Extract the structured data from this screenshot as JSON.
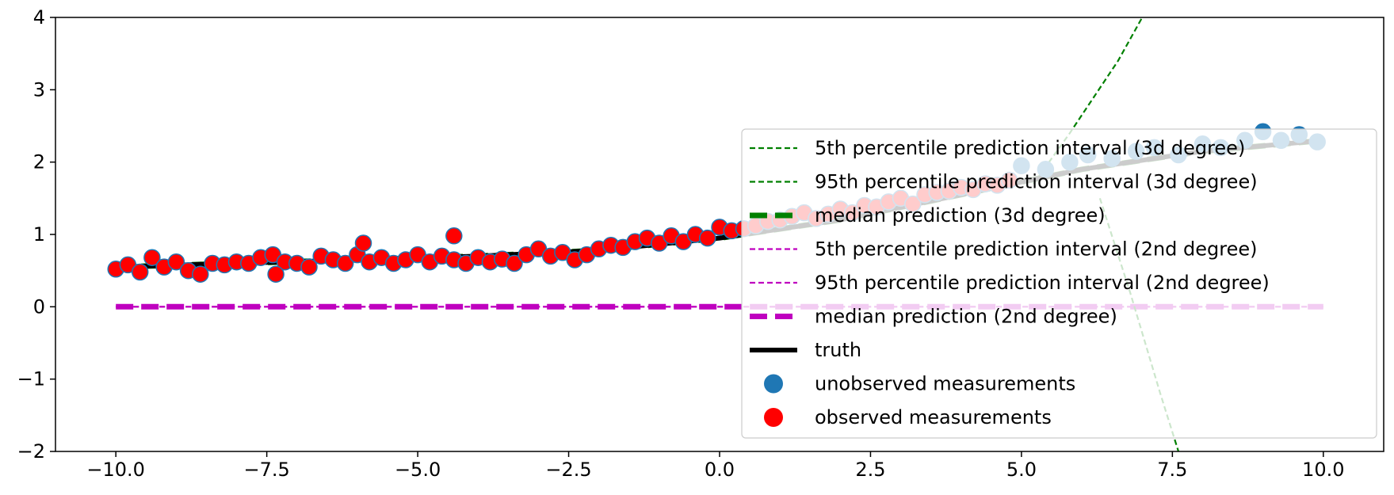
{
  "chart_data": {
    "type": "line",
    "title": "",
    "xlabel": "",
    "ylabel": "",
    "xlim": [
      -11.0,
      11.0
    ],
    "ylim": [
      -2,
      4
    ],
    "x_ticks": [
      -10.0,
      -7.5,
      -5.0,
      -2.5,
      0.0,
      2.5,
      5.0,
      7.5,
      10.0
    ],
    "x_tick_labels": [
      "−10.0",
      "−7.5",
      "−5.0",
      "−2.5",
      "0.0",
      "2.5",
      "5.0",
      "7.5",
      "10.0"
    ],
    "y_ticks": [
      -2,
      -1,
      0,
      1,
      2,
      3,
      4
    ],
    "y_tick_labels": [
      "−2",
      "−1",
      "0",
      "1",
      "2",
      "3",
      "4"
    ],
    "grid": false,
    "legend_position": "lower-right",
    "series": [
      {
        "name": "5th percentile prediction interval (3d degree)",
        "color": "#008000",
        "style": "dashed-thin",
        "x": [
          6.3,
          6.8,
          7.3,
          7.6
        ],
        "y": [
          1.5,
          0.2,
          -1.2,
          -2.0
        ]
      },
      {
        "name": "95th percentile prediction interval (3d degree)",
        "color": "#008000",
        "style": "dashed-thin",
        "x": [
          5.2,
          5.8,
          6.2,
          6.6,
          7.0
        ],
        "y": [
          1.7,
          2.4,
          2.9,
          3.4,
          4.0
        ]
      },
      {
        "name": "median prediction (3d degree)",
        "color": "#008000",
        "style": "dashed-thick",
        "x": [
          -10,
          -8,
          -6,
          -4,
          -2,
          0,
          2,
          4,
          6,
          8,
          10
        ],
        "y": [
          0.55,
          0.6,
          0.65,
          0.7,
          0.78,
          0.95,
          1.2,
          1.55,
          1.9,
          2.15,
          2.3
        ]
      },
      {
        "name": "5th percentile prediction interval (2nd degree)",
        "color": "#bf00bf",
        "style": "dashed-thin",
        "x": [
          -10,
          10
        ],
        "y": [
          0,
          0
        ]
      },
      {
        "name": "95th percentile prediction interval (2nd degree)",
        "color": "#bf00bf",
        "style": "dashed-thin",
        "x": [
          -10,
          10
        ],
        "y": [
          0,
          0
        ]
      },
      {
        "name": "median prediction (2nd degree)",
        "color": "#bf00bf",
        "style": "dashed-thick",
        "x": [
          -10,
          10
        ],
        "y": [
          0,
          0
        ]
      },
      {
        "name": "truth",
        "color": "#000000",
        "style": "solid-thick",
        "x": [
          -10,
          -8,
          -6,
          -4,
          -2,
          0,
          2,
          4,
          6,
          8,
          10
        ],
        "y": [
          0.55,
          0.6,
          0.65,
          0.7,
          0.78,
          0.95,
          1.2,
          1.55,
          1.9,
          2.15,
          2.3
        ]
      },
      {
        "name": "unobserved measurements",
        "color": "#1f77b4",
        "style": "points",
        "x": [
          5.0,
          5.4,
          5.8,
          6.1,
          6.5,
          6.9,
          7.2,
          7.6,
          8.0,
          8.3,
          8.7,
          9.0,
          9.3,
          9.6,
          9.9
        ],
        "y": [
          1.95,
          1.9,
          2.0,
          2.1,
          2.05,
          2.15,
          2.2,
          2.1,
          2.25,
          2.2,
          2.3,
          2.42,
          2.3,
          2.38,
          2.28
        ]
      },
      {
        "name": "observed measurements",
        "color": "#ff0000",
        "style": "points",
        "x": [
          -10.0,
          -9.8,
          -9.6,
          -9.4,
          -9.2,
          -9.0,
          -8.8,
          -8.6,
          -8.4,
          -8.2,
          -8.0,
          -7.8,
          -7.6,
          -7.4,
          -7.2,
          -7.0,
          -6.8,
          -6.6,
          -6.4,
          -6.2,
          -6.0,
          -5.8,
          -5.6,
          -5.4,
          -5.2,
          -5.0,
          -4.8,
          -4.6,
          -4.4,
          -4.2,
          -4.0,
          -3.8,
          -3.6,
          -3.4,
          -3.2,
          -3.0,
          -2.8,
          -2.6,
          -2.4,
          -2.2,
          -2.0,
          -1.8,
          -1.6,
          -1.4,
          -1.2,
          -1.0,
          -0.8,
          -0.6,
          -0.4,
          -0.2,
          0.0,
          0.2,
          0.4,
          0.6,
          0.8,
          1.0,
          1.2,
          1.4,
          1.6,
          1.8,
          2.0,
          2.2,
          2.4,
          2.6,
          2.8,
          3.0,
          3.2,
          3.4,
          3.6,
          3.8,
          4.0,
          4.2,
          4.4,
          4.6,
          4.8,
          -7.35,
          -4.4,
          -5.9
        ],
        "y": [
          0.52,
          0.58,
          0.48,
          0.68,
          0.55,
          0.62,
          0.5,
          0.45,
          0.6,
          0.58,
          0.62,
          0.6,
          0.68,
          0.72,
          0.62,
          0.6,
          0.55,
          0.7,
          0.65,
          0.6,
          0.72,
          0.62,
          0.68,
          0.6,
          0.65,
          0.72,
          0.62,
          0.7,
          0.65,
          0.6,
          0.68,
          0.62,
          0.66,
          0.6,
          0.72,
          0.8,
          0.7,
          0.75,
          0.65,
          0.72,
          0.8,
          0.85,
          0.82,
          0.9,
          0.95,
          0.88,
          0.98,
          0.9,
          1.0,
          0.95,
          1.1,
          1.05,
          1.08,
          1.12,
          1.18,
          1.2,
          1.25,
          1.3,
          1.22,
          1.28,
          1.35,
          1.3,
          1.4,
          1.38,
          1.45,
          1.5,
          1.42,
          1.55,
          1.58,
          1.6,
          1.65,
          1.62,
          1.7,
          1.68,
          1.75,
          0.45,
          0.98,
          0.88
        ]
      }
    ]
  }
}
